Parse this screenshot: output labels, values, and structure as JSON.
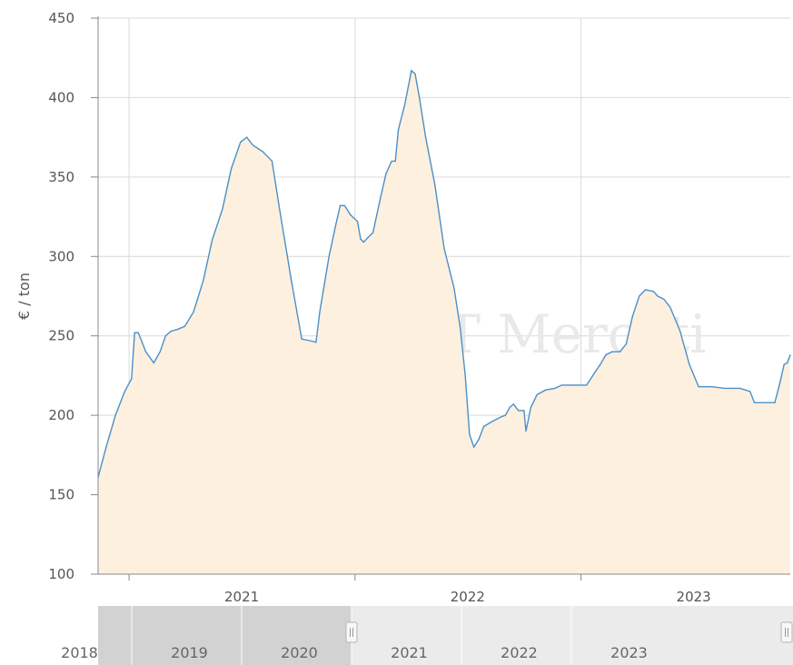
{
  "chart_data": {
    "type": "area",
    "ylabel": "€ / ton",
    "ylim": [
      100,
      450
    ],
    "yticks": [
      "450",
      "400",
      "350",
      "300",
      "250",
      "200",
      "150",
      "100"
    ],
    "xlim": [
      "2020-11-12",
      "2023-12-05"
    ],
    "xticks": [
      {
        "date": "2021-01-01",
        "label": "2021"
      },
      {
        "date": "2022-01-01",
        "label": "2022"
      },
      {
        "date": "2023-01-01",
        "label": "2023"
      }
    ],
    "grid": true,
    "legend": "none",
    "colors": {
      "line": "#4a90c8",
      "fill": "#fdf0df",
      "grid": "#d9d9d9",
      "axis": "#888888"
    },
    "watermark": "FT Mercati",
    "navigator": {
      "labels": [
        "2018",
        "2019",
        "2020",
        "2021",
        "2022",
        "2023"
      ],
      "selected_from": "2021"
    },
    "series": [
      {
        "points": [
          [
            "2020-11-12",
            161
          ],
          [
            "2020-11-25",
            180
          ],
          [
            "2020-12-10",
            200
          ],
          [
            "2020-12-25",
            215
          ],
          [
            "2021-01-05",
            223
          ],
          [
            "2021-01-10",
            252
          ],
          [
            "2021-01-16",
            252
          ],
          [
            "2021-01-28",
            240
          ],
          [
            "2021-02-10",
            233
          ],
          [
            "2021-02-20",
            240
          ],
          [
            "2021-03-01",
            250
          ],
          [
            "2021-03-10",
            253
          ],
          [
            "2021-03-20",
            254
          ],
          [
            "2021-04-01",
            256
          ],
          [
            "2021-04-15",
            265
          ],
          [
            "2021-05-01",
            285
          ],
          [
            "2021-05-15",
            310
          ],
          [
            "2021-06-01",
            330
          ],
          [
            "2021-06-15",
            355
          ],
          [
            "2021-06-30",
            372
          ],
          [
            "2021-07-10",
            375
          ],
          [
            "2021-07-20",
            370
          ],
          [
            "2021-08-05",
            366
          ],
          [
            "2021-08-20",
            360
          ],
          [
            "2021-09-01",
            330
          ],
          [
            "2021-09-20",
            285
          ],
          [
            "2021-10-07",
            248
          ],
          [
            "2021-10-20",
            247
          ],
          [
            "2021-10-30",
            246
          ],
          [
            "2021-11-05",
            265
          ],
          [
            "2021-11-20",
            300
          ],
          [
            "2021-12-01",
            320
          ],
          [
            "2021-12-08",
            332
          ],
          [
            "2021-12-15",
            332
          ],
          [
            "2021-12-25",
            326
          ],
          [
            "2022-01-05",
            322
          ],
          [
            "2022-01-10",
            311
          ],
          [
            "2022-01-15",
            309
          ],
          [
            "2022-01-22",
            312
          ],
          [
            "2022-01-30",
            315
          ],
          [
            "2022-02-10",
            335
          ],
          [
            "2022-02-20",
            352
          ],
          [
            "2022-03-01",
            360
          ],
          [
            "2022-03-07",
            360
          ],
          [
            "2022-03-12",
            380
          ],
          [
            "2022-03-22",
            395
          ],
          [
            "2022-04-02",
            417
          ],
          [
            "2022-04-08",
            415
          ],
          [
            "2022-04-15",
            400
          ],
          [
            "2022-04-25",
            375
          ],
          [
            "2022-05-10",
            345
          ],
          [
            "2022-05-25",
            305
          ],
          [
            "2022-06-10",
            280
          ],
          [
            "2022-06-20",
            255
          ],
          [
            "2022-06-28",
            225
          ],
          [
            "2022-07-05",
            188
          ],
          [
            "2022-07-12",
            180
          ],
          [
            "2022-07-20",
            185
          ],
          [
            "2022-07-28",
            193
          ],
          [
            "2022-08-10",
            196
          ],
          [
            "2022-08-25",
            199
          ],
          [
            "2022-09-01",
            200
          ],
          [
            "2022-09-08",
            205
          ],
          [
            "2022-09-14",
            207
          ],
          [
            "2022-09-22",
            203
          ],
          [
            "2022-10-01",
            203
          ],
          [
            "2022-10-04",
            190
          ],
          [
            "2022-10-12",
            205
          ],
          [
            "2022-10-22",
            213
          ],
          [
            "2022-11-05",
            216
          ],
          [
            "2022-11-20",
            217
          ],
          [
            "2022-12-01",
            219
          ],
          [
            "2022-12-15",
            219
          ],
          [
            "2023-01-01",
            219
          ],
          [
            "2023-01-10",
            219
          ],
          [
            "2023-01-20",
            225
          ],
          [
            "2023-02-01",
            232
          ],
          [
            "2023-02-10",
            238
          ],
          [
            "2023-02-20",
            240
          ],
          [
            "2023-03-05",
            240
          ],
          [
            "2023-03-15",
            245
          ],
          [
            "2023-03-25",
            262
          ],
          [
            "2023-04-05",
            275
          ],
          [
            "2023-04-15",
            279
          ],
          [
            "2023-04-28",
            278
          ],
          [
            "2023-05-05",
            275
          ],
          [
            "2023-05-15",
            273
          ],
          [
            "2023-05-25",
            268
          ],
          [
            "2023-06-10",
            253
          ],
          [
            "2023-06-25",
            232
          ],
          [
            "2023-07-10",
            218
          ],
          [
            "2023-08-01",
            218
          ],
          [
            "2023-08-20",
            217
          ],
          [
            "2023-09-15",
            217
          ],
          [
            "2023-10-01",
            215
          ],
          [
            "2023-10-08",
            208
          ],
          [
            "2023-10-25",
            208
          ],
          [
            "2023-11-10",
            208
          ],
          [
            "2023-11-18",
            220
          ],
          [
            "2023-11-25",
            232
          ],
          [
            "2023-11-30",
            233
          ],
          [
            "2023-12-05",
            238
          ]
        ]
      }
    ]
  }
}
